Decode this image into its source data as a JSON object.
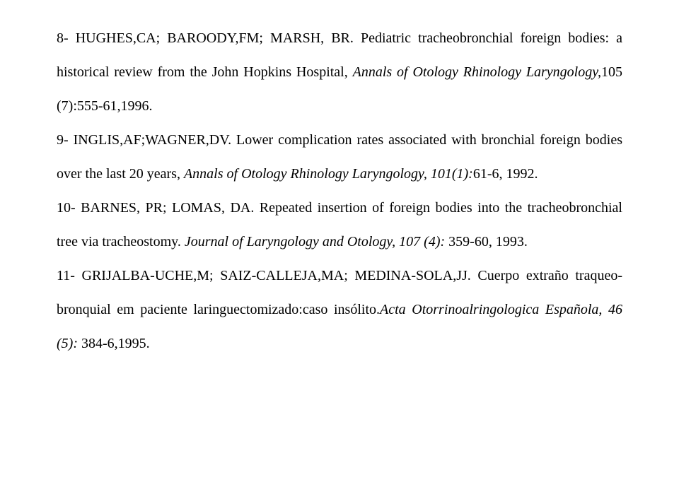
{
  "typography": {
    "font_family": "Times New Roman",
    "font_size_pt": 15,
    "line_height": 2.4,
    "text_align": "justify",
    "text_color": "#000000",
    "background_color": "#ffffff"
  },
  "refs": {
    "r8": {
      "authors": "8- HUGHES,CA; BAROODY,FM; MARSH, BR. Pediatric tracheobronchial foreign bodies: a historical review from the John Hopkins Hospital, ",
      "journal": "Annals of Otology Rhinology Laryngology,",
      "citation": "105 (7):555-61,1996."
    },
    "r9": {
      "authors": "9- INGLIS,AF;WAGNER,DV. Lower complication rates associated with bronchial foreign bodies over the last 20 years, ",
      "journal": "Annals of Otology Rhinology Laryngology, 101(1):",
      "citation": "61-6, 1992."
    },
    "r10": {
      "authors": "10- BARNES, PR; LOMAS, DA. Repeated insertion of foreign bodies into the tracheobronchial tree via tracheostomy. ",
      "journal": "Journal of Laryngology and Otology, 107 (4):",
      "citation": " 359-60, 1993."
    },
    "r11": {
      "authors": "11- GRIJALBA-UCHE,M; SAIZ-CALLEJA,MA; MEDINA-SOLA,JJ. Cuerpo extraño traqueo-bronquial em paciente laringuectomizado:caso insólito.",
      "journal": "Acta Otorrinoalringologica Española, 46 (5):",
      "citation": " 384-6,1995."
    }
  }
}
